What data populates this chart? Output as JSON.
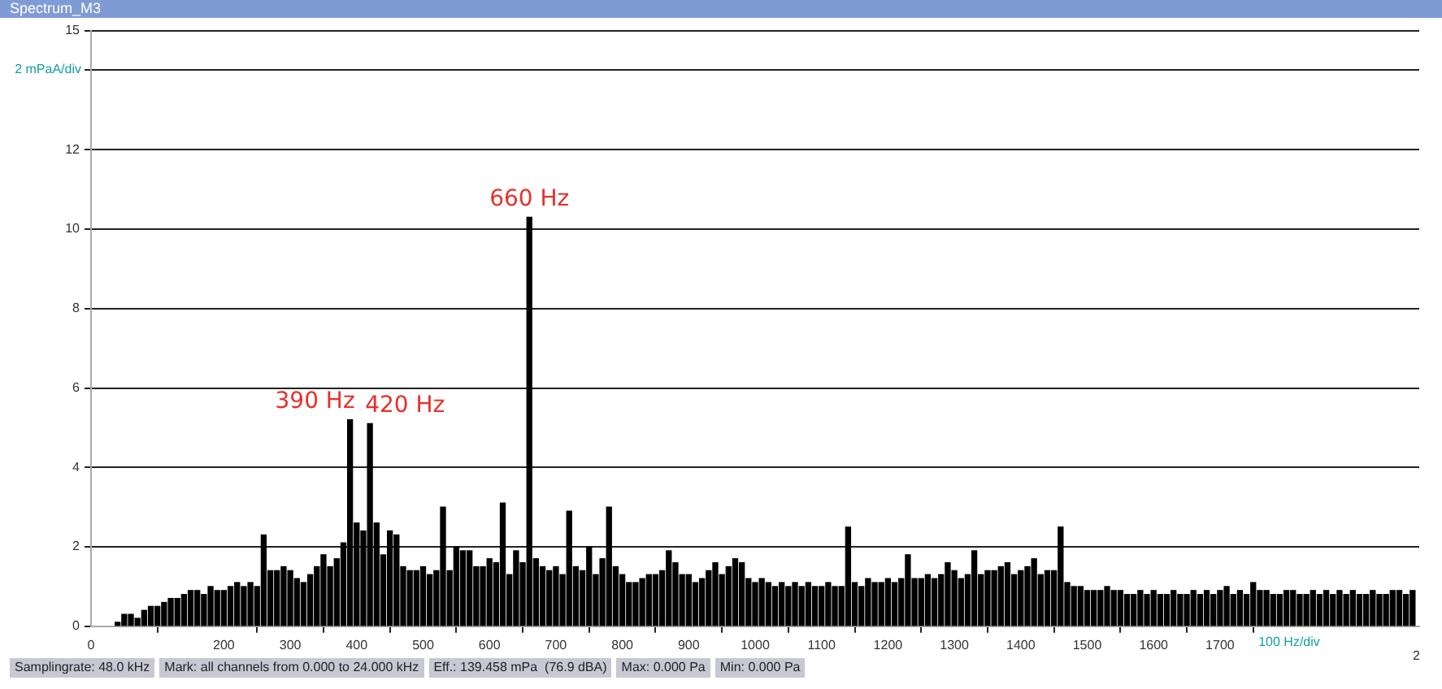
{
  "chart_data": {
    "type": "bar",
    "title": "Spectrum_M3",
    "color": "#000000",
    "x": [
      40,
      50,
      60,
      70,
      80,
      90,
      100,
      110,
      120,
      130,
      140,
      150,
      160,
      170,
      180,
      190,
      200,
      210,
      220,
      230,
      240,
      250,
      260,
      270,
      280,
      290,
      300,
      310,
      320,
      330,
      340,
      350,
      360,
      370,
      380,
      390,
      400,
      410,
      420,
      430,
      440,
      450,
      460,
      470,
      480,
      490,
      500,
      510,
      520,
      530,
      540,
      550,
      560,
      570,
      580,
      590,
      600,
      610,
      620,
      630,
      640,
      650,
      660,
      670,
      680,
      690,
      700,
      710,
      720,
      730,
      740,
      750,
      760,
      770,
      780,
      790,
      800,
      810,
      820,
      830,
      840,
      850,
      860,
      870,
      880,
      890,
      900,
      910,
      920,
      930,
      940,
      950,
      960,
      970,
      980,
      990,
      1000,
      1010,
      1020,
      1030,
      1040,
      1050,
      1060,
      1070,
      1080,
      1090,
      1100,
      1110,
      1120,
      1130,
      1140,
      1150,
      1160,
      1170,
      1180,
      1190,
      1200,
      1210,
      1220,
      1230,
      1240,
      1250,
      1260,
      1270,
      1280,
      1290,
      1300,
      1310,
      1320,
      1330,
      1340,
      1350,
      1360,
      1370,
      1380,
      1390,
      1400,
      1410,
      1420,
      1430,
      1440,
      1450,
      1460,
      1470,
      1480,
      1490,
      1500,
      1510,
      1520,
      1530,
      1540,
      1550,
      1560,
      1570,
      1580,
      1590,
      1600,
      1610,
      1620,
      1630,
      1640,
      1650,
      1660,
      1670,
      1680,
      1690,
      1700,
      1710,
      1720,
      1730,
      1740,
      1750,
      1760,
      1770,
      1780,
      1790,
      1800,
      1810,
      1820,
      1830,
      1840,
      1850,
      1860,
      1870,
      1880,
      1890,
      1900,
      1910,
      1920,
      1930,
      1940,
      1950,
      1960,
      1970,
      1980,
      1990
    ],
    "values": [
      0.1,
      0.3,
      0.3,
      0.2,
      0.4,
      0.5,
      0.5,
      0.6,
      0.7,
      0.7,
      0.8,
      0.9,
      0.9,
      0.8,
      1.0,
      0.9,
      0.9,
      1.0,
      1.1,
      1.0,
      1.1,
      1.0,
      2.3,
      1.4,
      1.4,
      1.5,
      1.4,
      1.2,
      1.1,
      1.3,
      1.5,
      1.8,
      1.5,
      1.7,
      2.1,
      5.2,
      2.6,
      2.4,
      5.1,
      2.6,
      1.8,
      2.4,
      2.3,
      1.5,
      1.4,
      1.4,
      1.5,
      1.3,
      1.4,
      3.0,
      1.4,
      2.0,
      1.9,
      1.9,
      1.5,
      1.5,
      1.7,
      1.6,
      3.1,
      1.3,
      1.9,
      1.6,
      10.3,
      1.7,
      1.5,
      1.4,
      1.5,
      1.3,
      2.9,
      1.5,
      1.4,
      2.0,
      1.3,
      1.7,
      3.0,
      1.5,
      1.3,
      1.1,
      1.1,
      1.2,
      1.3,
      1.3,
      1.4,
      1.9,
      1.6,
      1.3,
      1.3,
      1.1,
      1.2,
      1.4,
      1.6,
      1.3,
      1.5,
      1.7,
      1.6,
      1.2,
      1.1,
      1.2,
      1.1,
      1.0,
      1.1,
      1.0,
      1.1,
      1.0,
      1.1,
      1.0,
      1.0,
      1.1,
      1.0,
      1.0,
      2.5,
      1.1,
      1.0,
      1.2,
      1.1,
      1.1,
      1.2,
      1.1,
      1.2,
      1.8,
      1.2,
      1.2,
      1.3,
      1.2,
      1.3,
      1.6,
      1.4,
      1.2,
      1.3,
      1.9,
      1.3,
      1.4,
      1.4,
      1.5,
      1.6,
      1.3,
      1.4,
      1.5,
      1.7,
      1.3,
      1.4,
      1.4,
      2.5,
      1.1,
      1.0,
      1.0,
      0.9,
      0.9,
      0.9,
      1.0,
      0.9,
      0.9,
      0.8,
      0.8,
      0.9,
      0.8,
      0.9,
      0.8,
      0.8,
      0.9,
      0.8,
      0.8,
      0.9,
      0.8,
      0.9,
      0.8,
      0.9,
      1.0,
      0.8,
      0.9,
      0.8,
      1.1,
      0.9,
      0.9,
      0.8,
      0.8,
      0.9,
      0.9,
      0.8,
      0.8,
      0.9,
      0.8,
      0.9,
      0.8,
      0.9,
      0.8,
      0.9,
      0.8,
      0.8,
      0.9,
      0.8,
      0.8,
      0.9,
      0.9,
      0.8,
      0.9
    ],
    "xlim": [
      0,
      2000
    ],
    "xticks": [
      0,
      200,
      300,
      400,
      500,
      600,
      700,
      800,
      900,
      1000,
      1100,
      1200,
      1300,
      1400,
      1500,
      1600,
      1700
    ],
    "xlabel": "100 Hz/div",
    "ylabel": "2 mPaA/div",
    "ylim": [
      0,
      15
    ],
    "yticks": [
      0,
      2,
      4,
      6,
      8,
      10,
      12,
      {
        "value": 14,
        "label": null
      },
      15
    ],
    "grid": "y",
    "legend": false,
    "annotations": [
      {
        "text": "390 Hz",
        "x": 390,
        "y": 5.2
      },
      {
        "text": "420 Hz",
        "x": 420,
        "y": 5.1
      },
      {
        "text": "660 Hz",
        "x": 660,
        "y": 10.3
      },
      "2",
      "Samplingrate: 48.0 kHz",
      "Mark: all channels from 0.000 to 24.000 kHz",
      "Eff.: 139.458 mPa  (76.9 dBA)",
      "Max: 0.000 Pa",
      "Min: 0.000 Pa"
    ]
  }
}
